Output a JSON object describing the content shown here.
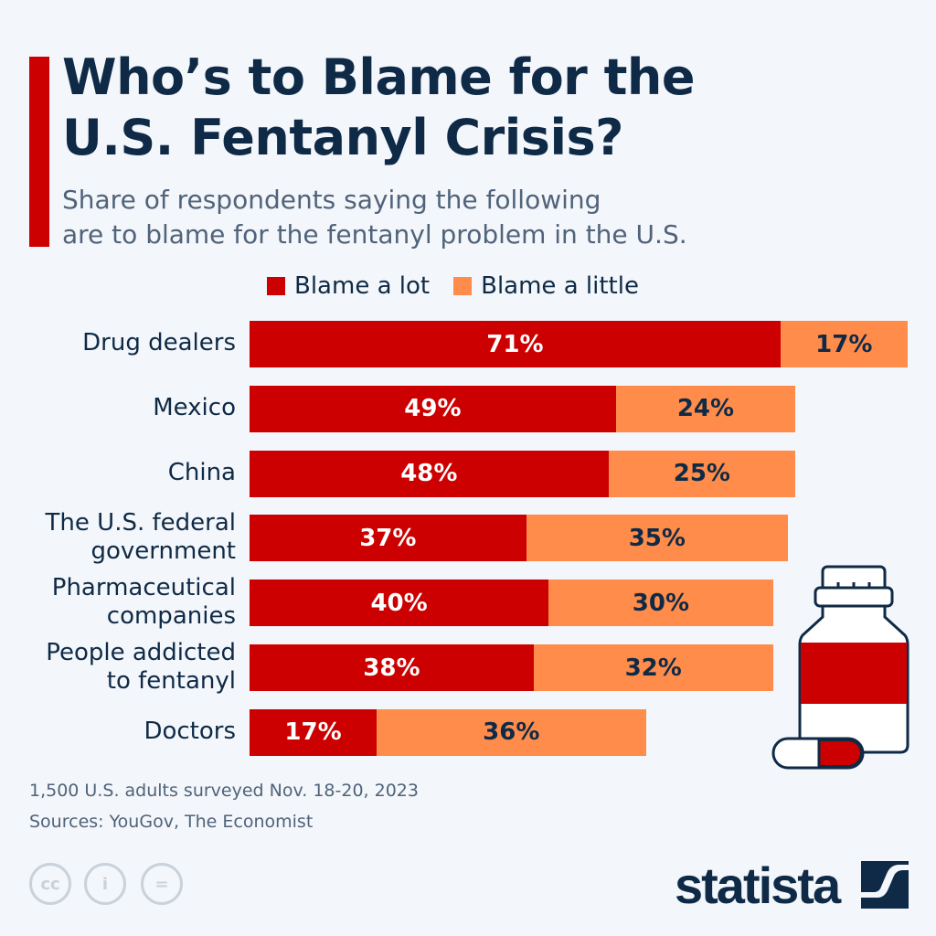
{
  "title_lines": [
    "Who’s to Blame for the",
    "U.S. Fentanyl Crisis?"
  ],
  "subtitle_lines": [
    "Share of respondents saying the following",
    "are to blame for the fentanyl problem in the U.S."
  ],
  "colors": {
    "accent": "#cc0000",
    "blame_a_lot": "#cc0000",
    "blame_a_little": "#ff8c4a",
    "text": "#0f2a46"
  },
  "chart_data": {
    "type": "bar",
    "orientation": "horizontal",
    "stacked": true,
    "legend_position": "top",
    "categories": [
      [
        "Drug dealers"
      ],
      [
        "Mexico"
      ],
      [
        "China"
      ],
      [
        "The U.S. federal",
        "government"
      ],
      [
        "Pharmaceutical",
        "companies"
      ],
      [
        "People addicted",
        "to fentanyl"
      ],
      [
        "Doctors"
      ]
    ],
    "series": [
      {
        "name": "Blame a lot",
        "values": [
          71,
          49,
          48,
          37,
          40,
          38,
          17
        ],
        "labels": [
          "71%",
          "49%",
          "48%",
          "37%",
          "40%",
          "38%",
          "17%"
        ]
      },
      {
        "name": "Blame a little",
        "values": [
          17,
          24,
          25,
          35,
          30,
          32,
          36
        ],
        "labels": [
          "17%",
          "24%",
          "25%",
          "35%",
          "30%",
          "32%",
          "36%"
        ]
      }
    ],
    "unit": "%"
  },
  "footer": {
    "note": "1,500 U.S. adults surveyed Nov. 18-20, 2023",
    "sources": "Sources: YouGov, The Economist",
    "license_icons": [
      "cc",
      "i",
      "="
    ],
    "brand": "statista"
  }
}
